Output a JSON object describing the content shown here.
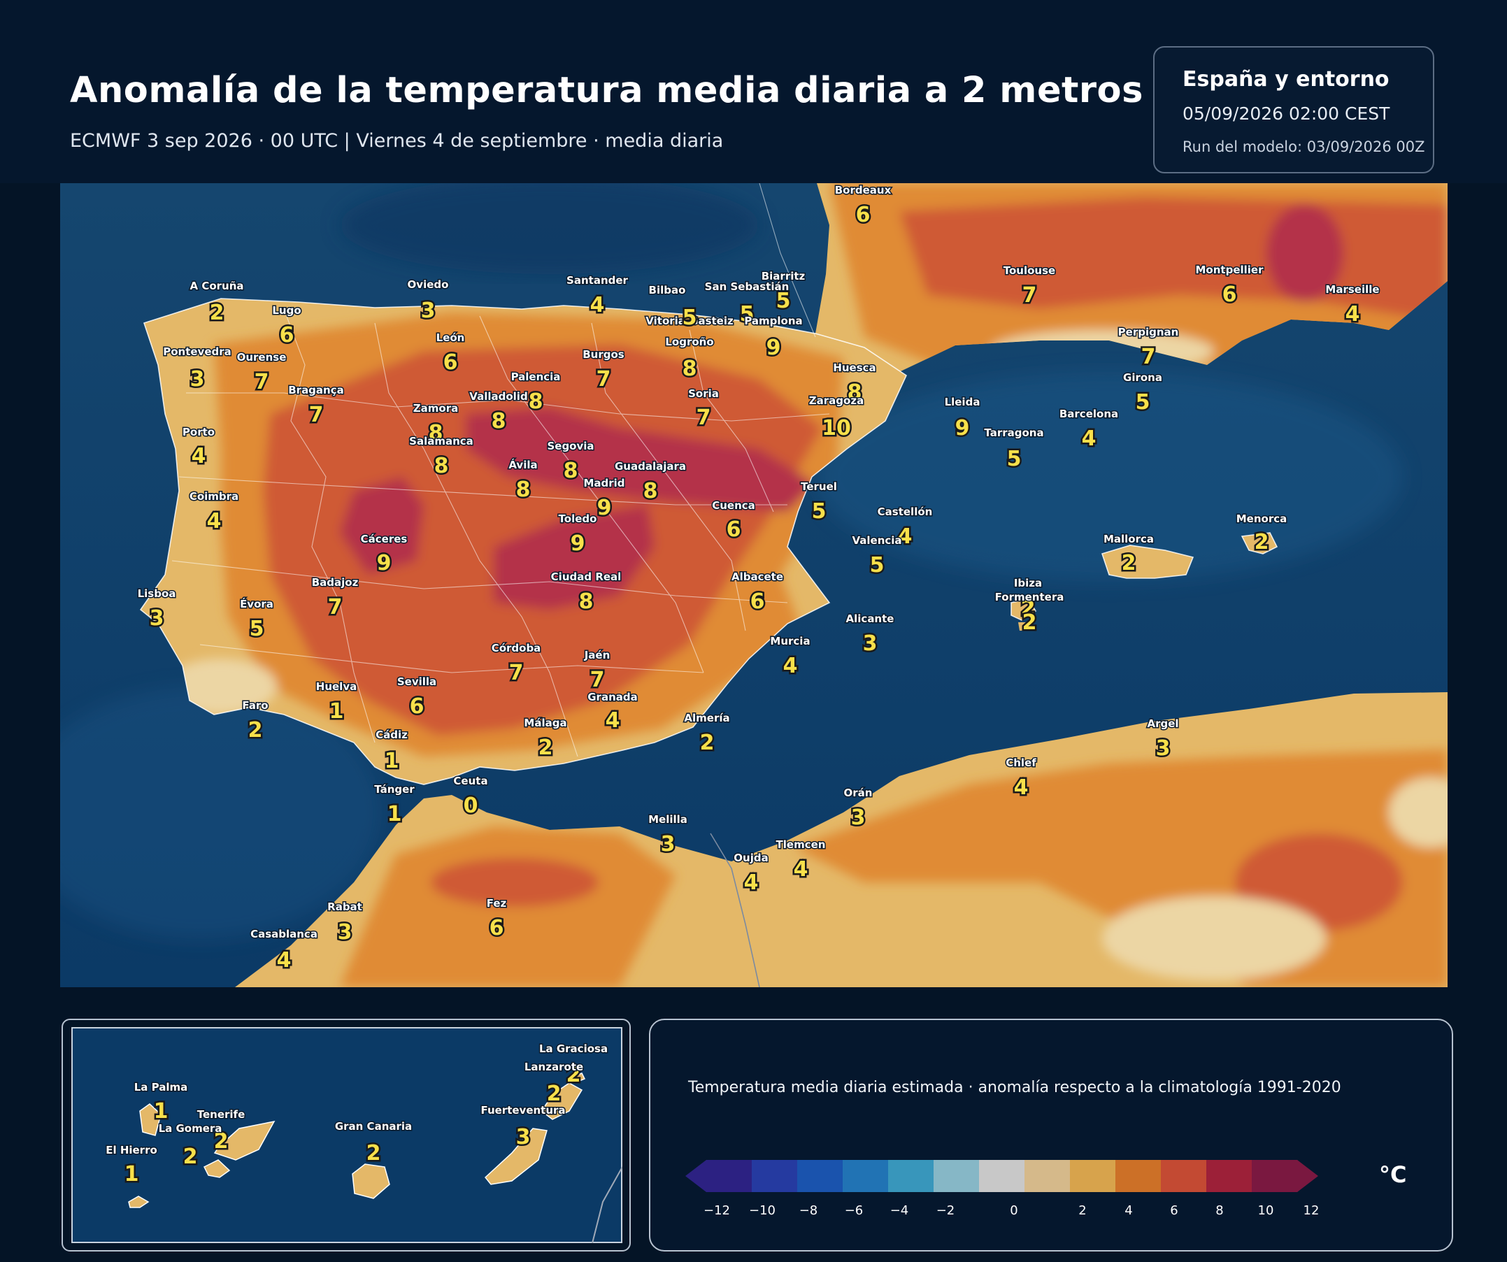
{
  "header": {
    "title": "Anomalía de la temperatura media diaria a 2 metros",
    "subtitle": "ECMWF 3 sep 2026 · 00 UTC  |  Viernes 4 de septiembre · media diaria"
  },
  "info": {
    "region": "España y entorno",
    "datetime": "05/09/2026  02:00 CEST",
    "run": "Run del modelo: 03/09/2026 00Z"
  },
  "colors": {
    "sea": "#0b3a66",
    "land_low": "#e4b868",
    "land_mid": "#e08b34",
    "land_high": "#cf5a34",
    "land_max": "#b4324a"
  },
  "map_labels": [
    {
      "name": "Bordeaux",
      "value": "6"
    },
    {
      "name": "Toulouse",
      "value": "7"
    },
    {
      "name": "Montpellier",
      "value": "6"
    },
    {
      "name": "Marseille",
      "value": "4"
    },
    {
      "name": "Perpignan",
      "value": "7"
    },
    {
      "name": "Biarritz",
      "value": "5"
    },
    {
      "name": "A Coruña",
      "value": "2"
    },
    {
      "name": "Lugo",
      "value": "6"
    },
    {
      "name": "Oviedo",
      "value": "3"
    },
    {
      "name": "Santander",
      "value": "4"
    },
    {
      "name": "Bilbao",
      "value": ""
    },
    {
      "name": "San Sebastián",
      "value": "5"
    },
    {
      "name": "Vitoria-Gasteiz",
      "value": "5"
    },
    {
      "name": "Pamplona",
      "value": "9"
    },
    {
      "name": "Logroño",
      "value": "8"
    },
    {
      "name": "Pontevedra",
      "value": "3"
    },
    {
      "name": "Ourense",
      "value": "7"
    },
    {
      "name": "León",
      "value": "6"
    },
    {
      "name": "Burgos",
      "value": "7"
    },
    {
      "name": "Palencia",
      "value": "8"
    },
    {
      "name": "Huesca",
      "value": "8"
    },
    {
      "name": "Girona",
      "value": "5"
    },
    {
      "name": "Bragança",
      "value": "7"
    },
    {
      "name": "Zamora",
      "value": "8"
    },
    {
      "name": "Valladolid",
      "value": "8"
    },
    {
      "name": "Soria",
      "value": "7"
    },
    {
      "name": "Zaragoza",
      "value": "10"
    },
    {
      "name": "Lleida",
      "value": "9"
    },
    {
      "name": "Barcelona",
      "value": "4"
    },
    {
      "name": "Porto",
      "value": "4"
    },
    {
      "name": "Salamanca",
      "value": "8"
    },
    {
      "name": "Segovia",
      "value": "8"
    },
    {
      "name": "Tarragona",
      "value": "5"
    },
    {
      "name": "Ávila",
      "value": "8"
    },
    {
      "name": "Guadalajara",
      "value": "8"
    },
    {
      "name": "Madrid",
      "value": "9"
    },
    {
      "name": "Coimbra",
      "value": "4"
    },
    {
      "name": "Teruel",
      "value": "5"
    },
    {
      "name": "Cuenca",
      "value": "6"
    },
    {
      "name": "Toledo",
      "value": "9"
    },
    {
      "name": "Castellón",
      "value": "4"
    },
    {
      "name": "Menorca",
      "value": "2"
    },
    {
      "name": "Cáceres",
      "value": "9"
    },
    {
      "name": "Valencia",
      "value": "5"
    },
    {
      "name": "Mallorca",
      "value": "2"
    },
    {
      "name": "Badajoz",
      "value": "7"
    },
    {
      "name": "Ciudad Real",
      "value": "8"
    },
    {
      "name": "Albacete",
      "value": "6"
    },
    {
      "name": "Lisboa",
      "value": "3"
    },
    {
      "name": "Évora",
      "value": "5"
    },
    {
      "name": "Ibiza",
      "value": "2"
    },
    {
      "name": "Formentera",
      "value": "2"
    },
    {
      "name": "Alicante",
      "value": "3"
    },
    {
      "name": "Murcia",
      "value": "4"
    },
    {
      "name": "Córdoba",
      "value": "7"
    },
    {
      "name": "Jaén",
      "value": "7"
    },
    {
      "name": "Huelva",
      "value": "1"
    },
    {
      "name": "Sevilla",
      "value": "6"
    },
    {
      "name": "Granada",
      "value": "4"
    },
    {
      "name": "Faro",
      "value": "2"
    },
    {
      "name": "Almería",
      "value": "2"
    },
    {
      "name": "Málaga",
      "value": "2"
    },
    {
      "name": "Cádiz",
      "value": "1"
    },
    {
      "name": "Argel",
      "value": "3"
    },
    {
      "name": "Chlef",
      "value": "4"
    },
    {
      "name": "Tánger",
      "value": "1"
    },
    {
      "name": "Ceuta",
      "value": "0"
    },
    {
      "name": "Orán",
      "value": "3"
    },
    {
      "name": "Melilla",
      "value": "3"
    },
    {
      "name": "Tlemcen",
      "value": "4"
    },
    {
      "name": "Oujda",
      "value": "4"
    },
    {
      "name": "Rabat",
      "value": "3"
    },
    {
      "name": "Fez",
      "value": "6"
    },
    {
      "name": "Casablanca",
      "value": "4"
    }
  ],
  "canary_labels": [
    {
      "name": "La Graciosa",
      "value": "2"
    },
    {
      "name": "Lanzarote",
      "value": "2"
    },
    {
      "name": "La Palma",
      "value": "1"
    },
    {
      "name": "Tenerife",
      "value": "2"
    },
    {
      "name": "Fuerteventura",
      "value": "3"
    },
    {
      "name": "La Gomera",
      "value": "2"
    },
    {
      "name": "Gran Canaria",
      "value": "2"
    },
    {
      "name": "El Hierro",
      "value": "1"
    }
  ],
  "legend": {
    "caption": "Temperatura media diaria estimada · anomalía respecto a la climatología 1991-2020",
    "unit": "°C",
    "ticks": [
      "−12",
      "−10",
      "−8",
      "−6",
      "−4",
      "−2",
      "0",
      "2",
      "4",
      "6",
      "8",
      "10",
      "12"
    ],
    "bin_colors": [
      "#2c2182",
      "#253aa0",
      "#1a53ad",
      "#2173b4",
      "#3896bb",
      "#86b7c6",
      "#c8c8c8",
      "#d5b98a",
      "#d7a34c",
      "#cc7027",
      "#c34a33",
      "#9c2038",
      "#7a1840"
    ]
  }
}
